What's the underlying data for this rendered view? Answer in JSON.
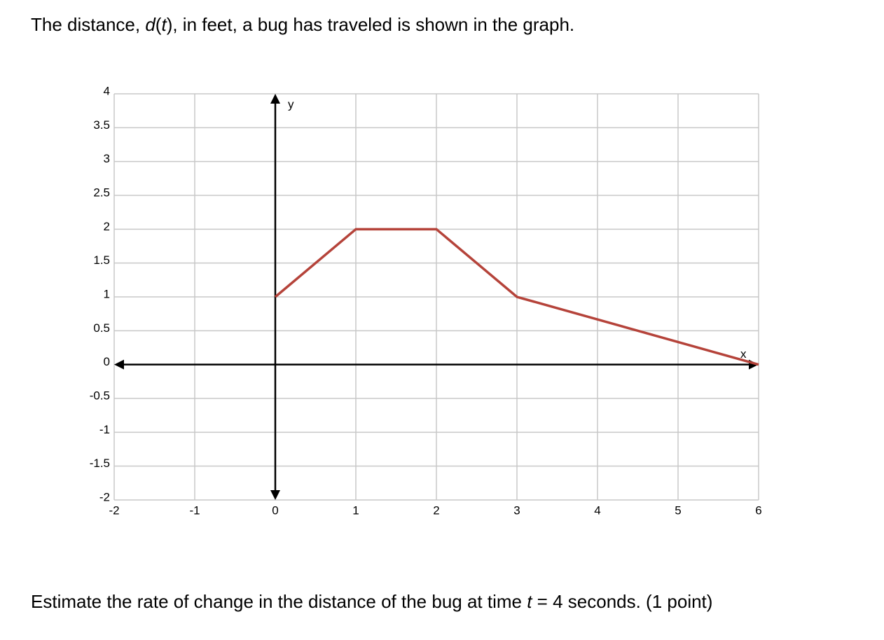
{
  "intro": [
    "The distance, ",
    "d",
    "(",
    "t",
    "), in feet, a bug has traveled is shown in the graph."
  ],
  "chart_data": {
    "type": "line",
    "x_label": "x",
    "y_label": "y",
    "x": [
      0,
      1,
      2,
      3,
      6
    ],
    "values": [
      1,
      2,
      2,
      1,
      0
    ],
    "color": "#b5433a",
    "xlim": [
      -2,
      6
    ],
    "ylim": [
      -2,
      4
    ],
    "xticks": [
      -2,
      -1,
      0,
      1,
      2,
      3,
      4,
      5,
      6
    ],
    "yticks": [
      -2,
      -1.5,
      -1,
      -0.5,
      0,
      0.5,
      1,
      1.5,
      2,
      2.5,
      3,
      3.5,
      4
    ],
    "grid": true
  },
  "prompt": [
    "Estimate the rate of change in the distance of the bug at time ",
    "t",
    " = 4 seconds. (1 point)"
  ]
}
